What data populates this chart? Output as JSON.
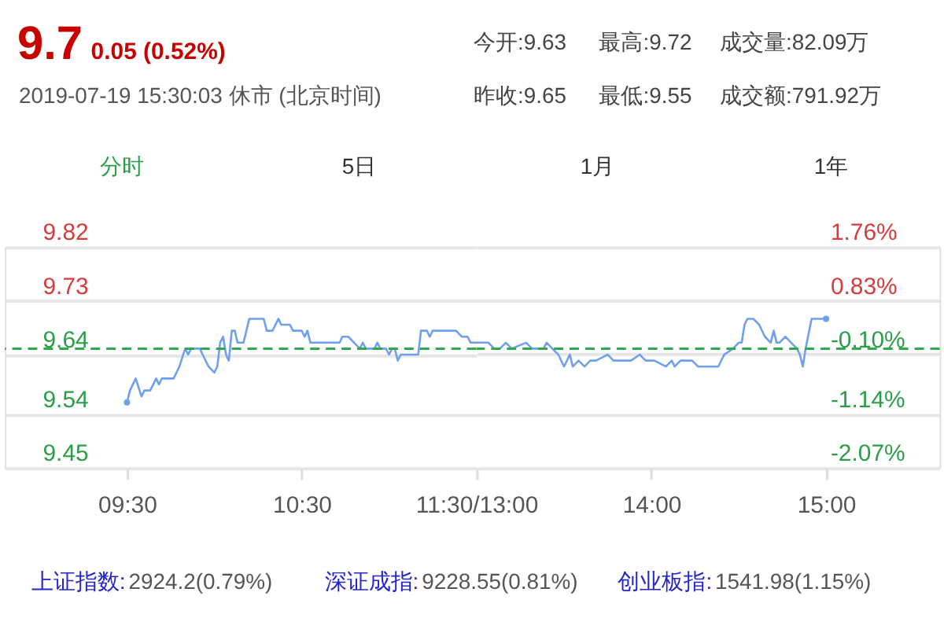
{
  "chart_data": [
    {
      "type": "line",
      "title": "9.7",
      "subtitle": "0.05 (0.52%)",
      "annotations": [
        "2019-07-19 15:30:03 休市 (北京时间)",
        "今开:9.63",
        "最高:9.72",
        "成交量:82.09万",
        "昨收:9.65",
        "最低:9.55",
        "成交额:791.92万",
        "分时",
        "5日",
        "1月",
        "1年",
        "上证指数:",
        "2924.2(0.79%)",
        "深证成指:",
        "9228.55(0.81%)",
        "创业板指:",
        "1541.98(1.15%)"
      ],
      "series": [
        {
          "color": "#6fa0ef",
          "x": [
            9.5,
            9.517,
            9.55,
            9.583,
            9.6,
            9.633,
            9.667,
            9.683,
            9.7,
            9.767,
            9.8,
            9.833,
            9.85,
            9.867,
            9.883,
            9.917,
            9.933,
            9.967,
            10.0,
            10.017,
            10.033,
            10.05,
            10.067,
            10.083,
            10.1,
            10.117,
            10.133,
            10.167,
            10.2,
            10.283,
            10.3,
            10.333,
            10.367,
            10.383,
            10.433,
            10.45,
            10.5,
            10.517,
            10.533,
            10.55,
            10.717,
            10.733,
            10.767,
            10.8,
            10.833,
            10.85,
            10.867,
            10.917,
            10.933,
            10.95,
            10.983,
            11.0,
            11.017,
            11.033,
            11.05,
            11.067,
            11.167,
            11.183,
            11.217,
            11.233,
            11.25,
            11.383,
            11.417,
            11.45,
            11.467,
            11.5
          ],
          "values": [
            9.56,
            9.58,
            9.6,
            9.57,
            9.58,
            9.58,
            9.6,
            9.59,
            9.6,
            9.6,
            9.62,
            9.65,
            9.64,
            9.65,
            9.65,
            9.65,
            9.64,
            9.62,
            9.61,
            9.62,
            9.66,
            9.67,
            9.64,
            9.63,
            9.68,
            9.68,
            9.66,
            9.66,
            9.7,
            9.7,
            9.68,
            9.68,
            9.7,
            9.69,
            9.69,
            9.68,
            9.68,
            9.67,
            9.68,
            9.66,
            9.66,
            9.67,
            9.67,
            9.66,
            9.65,
            9.66,
            9.65,
            9.65,
            9.66,
            9.65,
            9.65,
            9.64,
            9.65,
            9.65,
            9.63,
            9.64,
            9.64,
            9.68,
            9.68,
            9.67,
            9.68,
            9.68,
            9.67,
            9.67,
            9.66,
            9.66
          ]
        },
        {
          "type": "scatter",
          "color": "#6fa0ef",
          "x": [
            9.5
          ],
          "values": [
            9.56
          ]
        }
      ],
      "xlim": [
        8.8,
        11.5
      ],
      "xticks": [
        {
          "value": 9.5,
          "label": "09:30"
        },
        {
          "value": 10.5,
          "label": "10:30"
        },
        {
          "value": 11.5,
          "label": "11:30/13:00"
        }
      ],
      "ylim": [
        9.45,
        9.82
      ],
      "yticks": [
        9.45,
        9.54,
        9.64,
        9.73,
        9.82
      ],
      "ref_lines": [
        {
          "axis": "y",
          "value": 9.65,
          "color": "#2fa84f",
          "line_style": "dashed"
        }
      ],
      "grid": "y"
    },
    {
      "type": "line",
      "series": [
        {
          "color": "#6fa0ef",
          "x": [
            13.0,
            13.067,
            13.1,
            13.133,
            13.167,
            13.2,
            13.283,
            13.317,
            13.383,
            13.4,
            13.433,
            13.467,
            13.5,
            13.533,
            13.55,
            13.583,
            13.617,
            13.65,
            13.683,
            13.75,
            13.783,
            13.883,
            13.933,
            13.967,
            14.017,
            14.083,
            14.117,
            14.133,
            14.167,
            14.233,
            14.267,
            14.383,
            14.417,
            14.467,
            14.5,
            14.517,
            14.533,
            14.55,
            14.583,
            14.617,
            14.65,
            14.683,
            14.7,
            14.717,
            14.733,
            14.767,
            14.8,
            14.833,
            14.85,
            14.867,
            14.883,
            14.917,
            15.0
          ],
          "values": [
            9.66,
            9.66,
            9.65,
            9.65,
            9.66,
            9.65,
            9.66,
            9.65,
            9.65,
            9.66,
            9.65,
            9.64,
            9.62,
            9.64,
            9.62,
            9.63,
            9.62,
            9.63,
            9.63,
            9.64,
            9.63,
            9.63,
            9.64,
            9.63,
            9.63,
            9.62,
            9.63,
            9.62,
            9.63,
            9.63,
            9.62,
            9.62,
            9.64,
            9.65,
            9.66,
            9.66,
            9.69,
            9.7,
            9.7,
            9.69,
            9.67,
            9.66,
            9.68,
            9.66,
            9.66,
            9.67,
            9.66,
            9.65,
            9.64,
            9.62,
            9.65,
            9.7,
            9.7
          ]
        },
        {
          "type": "scatter",
          "color": "#6fa0ef",
          "x": [
            15.0
          ],
          "values": [
            9.7
          ]
        }
      ],
      "xlim": [
        13,
        15.65
      ],
      "xticks": [
        {
          "value": 14,
          "label": "14:00"
        },
        {
          "value": 15,
          "label": "15:00"
        }
      ],
      "ylim": [
        9.45,
        9.82
      ],
      "y2lim": [
        -2.07,
        1.76
      ],
      "y2ticks": [
        {
          "value": -2.07,
          "label": "-2.07%"
        },
        {
          "value": -1.14,
          "label": "-1.14%"
        },
        {
          "value": -0.1,
          "label": "-0.10%"
        },
        {
          "value": 0.83,
          "label": "0.83%"
        },
        {
          "value": 1.76,
          "label": "1.76%"
        }
      ],
      "ref_lines": [
        {
          "axis": "y",
          "value": 9.65,
          "color": "#2fa84f",
          "line_style": "dashed"
        }
      ],
      "grid": "y",
      "tick_labels": [
        "x",
        "y2"
      ]
    }
  ]
}
